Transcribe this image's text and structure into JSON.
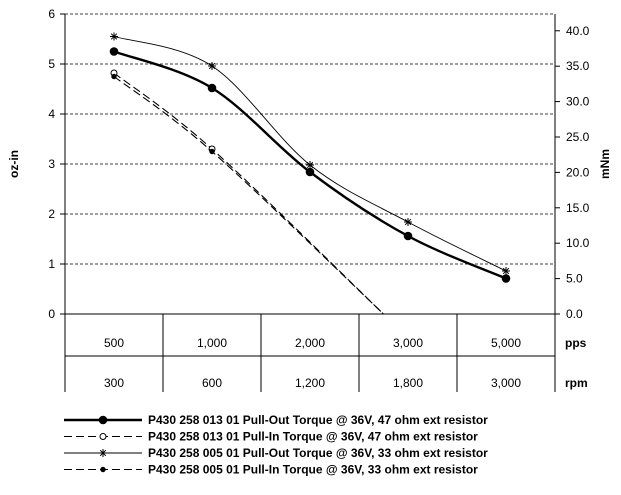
{
  "chart_data": {
    "type": "line",
    "x_pps": [
      "500",
      "1,000",
      "2,000",
      "3,000",
      "5,000"
    ],
    "x_rpm": [
      "300",
      "600",
      "1,200",
      "1,800",
      "3,000"
    ],
    "x_unit_pps": "pps",
    "x_unit_rpm": "rpm",
    "ylabel_left": "oz-in",
    "ylabel_right": "mNm",
    "ylim_left": [
      0,
      6
    ],
    "ylim_right": [
      0,
      42.37
    ],
    "yticks_left": [
      "0",
      "1",
      "2",
      "3",
      "4",
      "5",
      "6"
    ],
    "yticks_right": [
      "0.0",
      "5.0",
      "10.0",
      "15.0",
      "20.0",
      "25.0",
      "30.0",
      "35.0",
      "40.0"
    ],
    "grid": "horizontal dashed",
    "legend_position": "bottom",
    "series": [
      {
        "name": "P430 258 013 01 Pull-Out Torque @ 36V, 47 ohm ext resistor",
        "color": "#000000",
        "values": [
          5.25,
          4.52,
          2.84,
          1.56,
          0.71
        ],
        "style": "thick-solid",
        "marker": "filled-circle"
      },
      {
        "name": "P430 258 013 01 Pull-In Torque @ 36V, 47 ohm ext resistor",
        "color": "#000000",
        "values": [
          4.82,
          3.3,
          null,
          null,
          null
        ],
        "x_end": 2.75,
        "style": "dashed",
        "marker": "open-circle"
      },
      {
        "name": "P430 258 005 01 Pull-Out Torque @ 36V, 33 ohm ext resistor",
        "color": "#000000",
        "values": [
          5.55,
          4.96,
          2.98,
          1.84,
          0.86
        ],
        "style": "thin-solid",
        "marker": "asterisk"
      },
      {
        "name": "P430 258 005 01 Pull-In Torque @ 36V, 33 ohm ext resistor",
        "color": "#000000",
        "values": [
          4.75,
          3.25,
          null,
          null,
          null
        ],
        "x_end": 2.75,
        "style": "dashed",
        "marker": "small-dot"
      }
    ]
  }
}
